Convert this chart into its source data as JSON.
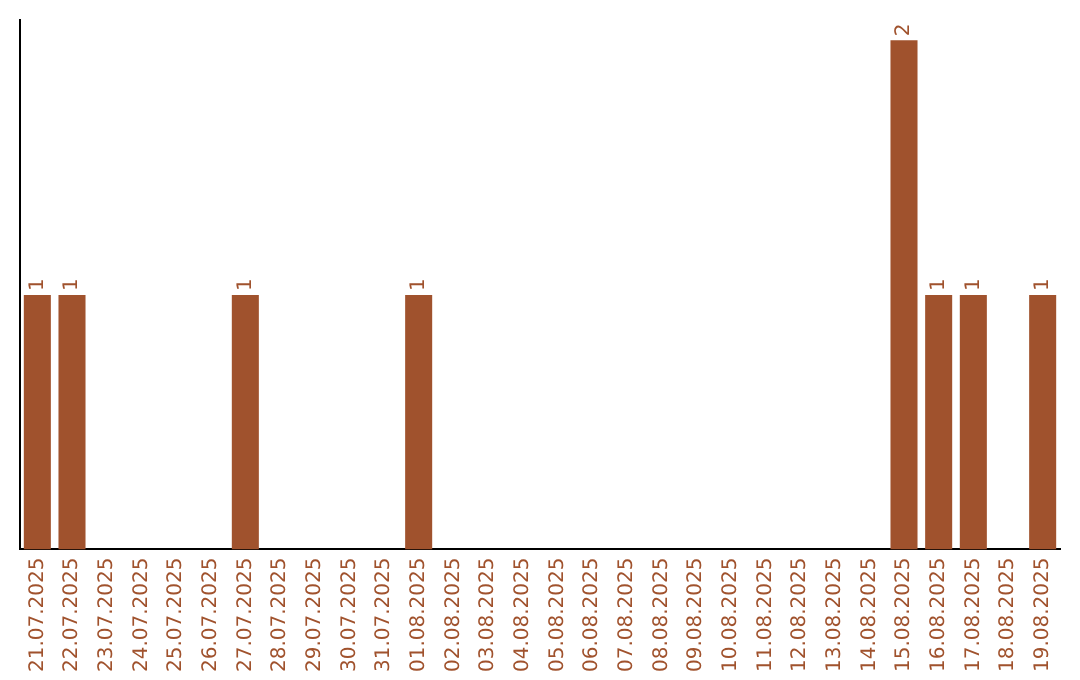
{
  "chart_data": {
    "type": "bar",
    "categories": [
      "21.07.2025",
      "22.07.2025",
      "23.07.2025",
      "24.07.2025",
      "25.07.2025",
      "26.07.2025",
      "27.07.2025",
      "28.07.2025",
      "29.07.2025",
      "30.07.2025",
      "31.07.2025",
      "01.08.2025",
      "02.08.2025",
      "03.08.2025",
      "04.08.2025",
      "05.08.2025",
      "06.08.2025",
      "07.08.2025",
      "08.08.2025",
      "09.08.2025",
      "10.08.2025",
      "11.08.2025",
      "12.08.2025",
      "13.08.2025",
      "14.08.2025",
      "15.08.2025",
      "16.08.2025",
      "17.08.2025",
      "18.08.2025",
      "19.08.2025"
    ],
    "values": [
      1,
      1,
      0,
      0,
      0,
      0,
      1,
      0,
      0,
      0,
      0,
      1,
      0,
      0,
      0,
      0,
      0,
      0,
      0,
      0,
      0,
      0,
      0,
      0,
      0,
      2,
      1,
      1,
      0,
      1
    ],
    "value_labels": [
      "1",
      "1",
      null,
      null,
      null,
      null,
      "1",
      null,
      null,
      null,
      null,
      "1",
      null,
      null,
      null,
      null,
      null,
      null,
      null,
      null,
      null,
      null,
      null,
      null,
      null,
      "2",
      "1",
      "1",
      null,
      "1"
    ],
    "color": "#a0522d",
    "ylim": [
      0,
      2.08
    ],
    "tick_labels": "x",
    "grid": false,
    "legend": false
  }
}
